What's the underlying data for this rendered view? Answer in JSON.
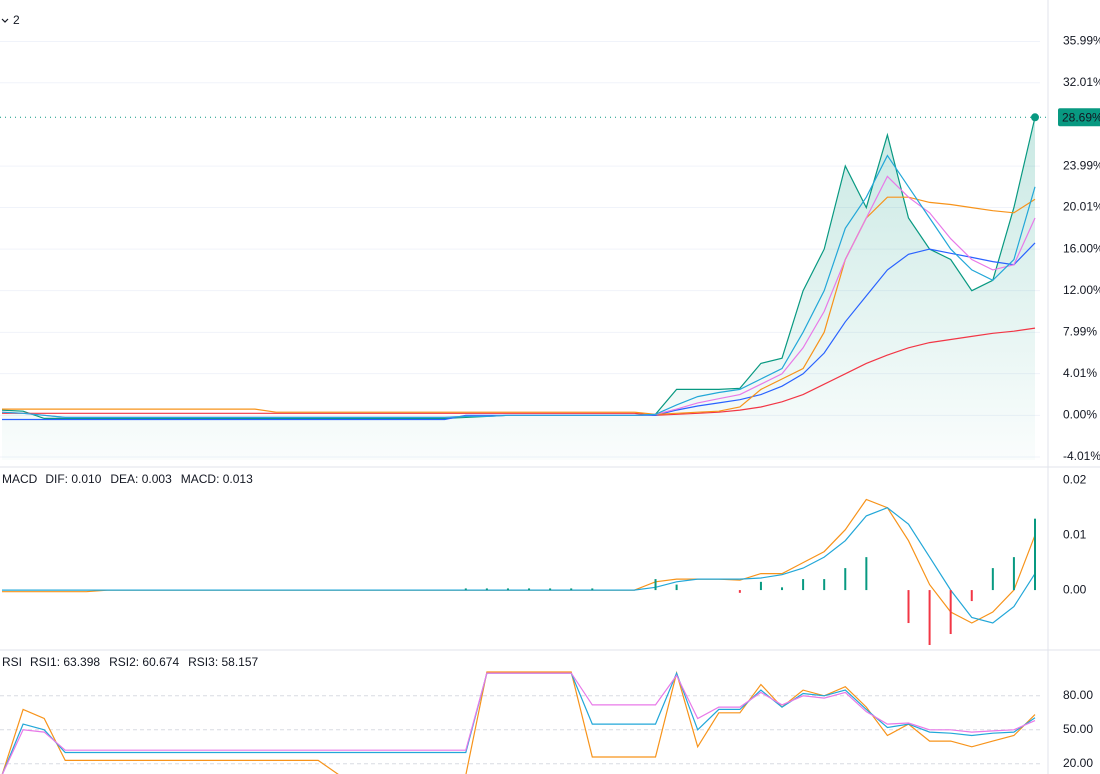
{
  "toolbar": {
    "label": "2"
  },
  "chart_data": [
    {
      "type": "line",
      "tick_color": "#089981",
      "negative_tick_color": "#f23645",
      "ylim": [
        -4.3,
        39.5
      ],
      "yticks": [
        {
          "value": -4.01,
          "label": "-4.01%"
        },
        {
          "value": 0,
          "label": "0.00%"
        },
        {
          "value": 4.01,
          "label": "4.01%"
        },
        {
          "value": 7.99,
          "label": "7.99%"
        },
        {
          "value": 12,
          "label": "12.00%"
        },
        {
          "value": 16,
          "label": "16.00%"
        },
        {
          "value": 20.01,
          "label": "20.01%"
        },
        {
          "value": 23.99,
          "label": "23.99%"
        },
        {
          "value": 32.01,
          "label": "32.01%"
        },
        {
          "value": 35.99,
          "label": "35.99%"
        }
      ],
      "grid": true,
      "series": [
        {
          "color": "#089981",
          "area": true,
          "last_label": "28.69%",
          "values": [
            0.5,
            0.4,
            -0.3,
            -0.3,
            -0.3,
            -0.3,
            -0.3,
            -0.3,
            -0.3,
            -0.3,
            -0.3,
            -0.3,
            -0.3,
            -0.3,
            -0.3,
            -0.3,
            -0.3,
            -0.3,
            -0.3,
            -0.3,
            -0.3,
            -0.3,
            -0.2,
            -0.1,
            0,
            0,
            0,
            0,
            0,
            0,
            0,
            0.1,
            2.5,
            2.5,
            2.5,
            2.6,
            5,
            5.5,
            12,
            16,
            24,
            20,
            27,
            19,
            16,
            15,
            12,
            13,
            20,
            28.69
          ]
        },
        {
          "color": "#f23645",
          "values": [
            0.2,
            0.2,
            0.2,
            0.2,
            0.2,
            0.2,
            0.2,
            0.2,
            0.2,
            0.2,
            0.2,
            0.2,
            0.2,
            0.2,
            0.2,
            0.2,
            0.2,
            0.2,
            0.2,
            0.2,
            0.2,
            0.2,
            0.2,
            0.2,
            0.2,
            0.2,
            0.2,
            0.2,
            0.2,
            0.2,
            0.2,
            0,
            0.1,
            0.2,
            0.3,
            0.5,
            0.8,
            1.3,
            2,
            3,
            4,
            5,
            5.8,
            6.5,
            7,
            7.3,
            7.6,
            7.9,
            8.1,
            8.4
          ]
        },
        {
          "color": "#2962ff",
          "values": [
            -0.4,
            -0.4,
            -0.4,
            -0.4,
            -0.4,
            -0.4,
            -0.4,
            -0.4,
            -0.4,
            -0.4,
            -0.4,
            -0.4,
            -0.4,
            -0.4,
            -0.4,
            -0.4,
            -0.4,
            -0.4,
            -0.4,
            -0.4,
            -0.4,
            -0.4,
            0,
            0,
            0,
            0,
            0,
            0,
            0,
            0,
            0,
            0,
            0.5,
            0.9,
            1.2,
            1.5,
            2,
            2.8,
            4,
            6,
            9,
            11.5,
            14,
            15.5,
            16,
            15.6,
            15.2,
            14.8,
            14.5,
            16.6
          ]
        },
        {
          "color": "#f7931a",
          "values": [
            0.6,
            0.6,
            0.6,
            0.6,
            0.6,
            0.6,
            0.6,
            0.6,
            0.6,
            0.6,
            0.6,
            0.6,
            0.6,
            0.3,
            0.3,
            0.3,
            0.3,
            0.3,
            0.3,
            0.3,
            0.3,
            0.3,
            0.3,
            0.3,
            0.3,
            0.3,
            0.3,
            0.3,
            0.3,
            0.3,
            0.3,
            0.1,
            0.2,
            0.3,
            0.4,
            0.8,
            2.5,
            3.5,
            4.5,
            8,
            15,
            19,
            21,
            21,
            20.5,
            20.3,
            20,
            19.7,
            19.5,
            20.8
          ]
        },
        {
          "color": "#e879e8",
          "values": [
            0.3,
            0.2,
            0,
            -0.2,
            -0.2,
            -0.2,
            -0.2,
            -0.2,
            -0.2,
            -0.2,
            -0.2,
            -0.2,
            -0.2,
            -0.2,
            -0.2,
            -0.2,
            -0.2,
            -0.2,
            -0.2,
            -0.2,
            -0.2,
            -0.2,
            -0.1,
            -0.1,
            0,
            0,
            0,
            0,
            0,
            0,
            0,
            0.1,
            0.6,
            1.2,
            1.6,
            2,
            3,
            4,
            6.5,
            10,
            15,
            19,
            23,
            21,
            19.5,
            17,
            15,
            14,
            14.5,
            19
          ]
        },
        {
          "color": "#22a7d8",
          "values": [
            0.3,
            0.2,
            0,
            -0.2,
            -0.2,
            -0.2,
            -0.2,
            -0.2,
            -0.2,
            -0.2,
            -0.2,
            -0.2,
            -0.2,
            -0.2,
            -0.2,
            -0.2,
            -0.2,
            -0.2,
            -0.2,
            -0.2,
            -0.2,
            -0.2,
            -0.1,
            -0.1,
            0,
            0,
            0,
            0,
            0,
            0,
            0,
            0.1,
            1,
            1.8,
            2.2,
            2.5,
            3.5,
            4.5,
            8,
            12,
            18,
            21,
            25,
            22,
            19,
            16,
            14,
            13,
            15,
            22
          ]
        }
      ]
    },
    {
      "type": "macd",
      "title": "MACD",
      "up_color": "#089981",
      "down_color": "#f23645",
      "ylim": [
        -0.01,
        0.0215
      ],
      "yticks": [
        {
          "value": 0,
          "label": "0.00"
        },
        0.01,
        0.02
      ],
      "grid": false,
      "series": [
        {
          "name": "DIF: 0.010",
          "color": "#f7931a",
          "values": [
            -0.0003,
            -0.0003,
            -0.0003,
            -0.0003,
            -0.0003,
            0,
            0,
            0,
            0,
            0,
            0,
            0,
            0,
            0,
            0,
            0,
            0,
            0,
            0,
            0,
            0,
            0,
            0,
            0,
            0,
            0,
            0,
            0,
            0,
            0,
            0,
            0.0015,
            0.002,
            0.002,
            0.002,
            0.0018,
            0.003,
            0.003,
            0.005,
            0.007,
            0.011,
            0.0165,
            0.015,
            0.009,
            0.001,
            -0.004,
            -0.006,
            -0.004,
            0,
            0.01
          ]
        },
        {
          "name": "DEA: 0.003",
          "color": "#22a7d8",
          "values": [
            0,
            0,
            0,
            0,
            0,
            0,
            0,
            0,
            0,
            0,
            0,
            0,
            0,
            0,
            0,
            0,
            0,
            0,
            0,
            0,
            0,
            0,
            0,
            0,
            0,
            0,
            0,
            0,
            0,
            0,
            0,
            0.0005,
            0.0015,
            0.002,
            0.002,
            0.002,
            0.0022,
            0.0028,
            0.004,
            0.006,
            0.009,
            0.0135,
            0.015,
            0.012,
            0.006,
            0,
            -0.005,
            -0.006,
            -0.003,
            0.003
          ]
        },
        {
          "name": "MACD: 0.013",
          "color": "#e879e8",
          "bars": true,
          "values": [
            0,
            0,
            0,
            0,
            0,
            0,
            0,
            0,
            0,
            0,
            0,
            0,
            0,
            0,
            0,
            0,
            0,
            0,
            0,
            0,
            0,
            0,
            0.0003,
            0.0003,
            0.0003,
            0.0003,
            0.0003,
            0.0003,
            0.0003,
            0,
            0,
            0.002,
            0.001,
            0,
            0,
            -0.0005,
            0.0015,
            0.0005,
            0.002,
            0.002,
            0.004,
            0.006,
            0,
            -0.006,
            -0.01,
            -0.008,
            -0.002,
            0.004,
            0.006,
            0.013
          ]
        }
      ]
    },
    {
      "type": "rsi",
      "title": "RSI",
      "ylim": [
        11,
        116
      ],
      "yticks": [
        {
          "value": 20,
          "label": "20.00"
        },
        {
          "value": 50,
          "label": "50.00"
        },
        {
          "value": 80,
          "label": "80.00"
        }
      ],
      "grid": true,
      "series": [
        {
          "name": "RSI1: 63.398",
          "color": "#f7931a",
          "values": [
            10,
            68,
            60,
            23,
            23,
            23,
            23,
            23,
            23,
            23,
            23,
            23,
            23,
            23,
            23,
            23,
            10,
            10,
            10,
            10,
            10,
            10,
            10,
            101,
            101,
            101,
            101,
            101,
            26,
            26,
            26,
            26,
            100,
            35,
            65,
            65,
            90,
            70,
            85,
            80,
            88,
            70,
            45,
            55,
            40,
            40,
            35,
            40,
            45,
            63.398
          ]
        },
        {
          "name": "RSI2: 60.674",
          "color": "#22a7d8",
          "values": [
            10,
            55,
            50,
            30,
            30,
            30,
            30,
            30,
            30,
            30,
            30,
            30,
            30,
            30,
            30,
            30,
            30,
            30,
            30,
            30,
            30,
            30,
            30,
            100,
            100,
            100,
            100,
            100,
            55,
            55,
            55,
            55,
            100,
            50,
            68,
            68,
            85,
            70,
            82,
            80,
            85,
            68,
            52,
            55,
            48,
            47,
            45,
            47,
            48,
            60.674
          ]
        },
        {
          "name": "RSI3: 58.157",
          "color": "#e879e8",
          "values": [
            10,
            50,
            48,
            32,
            32,
            32,
            32,
            32,
            32,
            32,
            32,
            32,
            32,
            32,
            32,
            32,
            32,
            32,
            32,
            32,
            32,
            32,
            32,
            100,
            100,
            100,
            100,
            100,
            72,
            72,
            72,
            72,
            98,
            60,
            70,
            70,
            83,
            72,
            80,
            78,
            83,
            66,
            55,
            56,
            50,
            50,
            48,
            49,
            50,
            58.157
          ]
        }
      ]
    }
  ]
}
